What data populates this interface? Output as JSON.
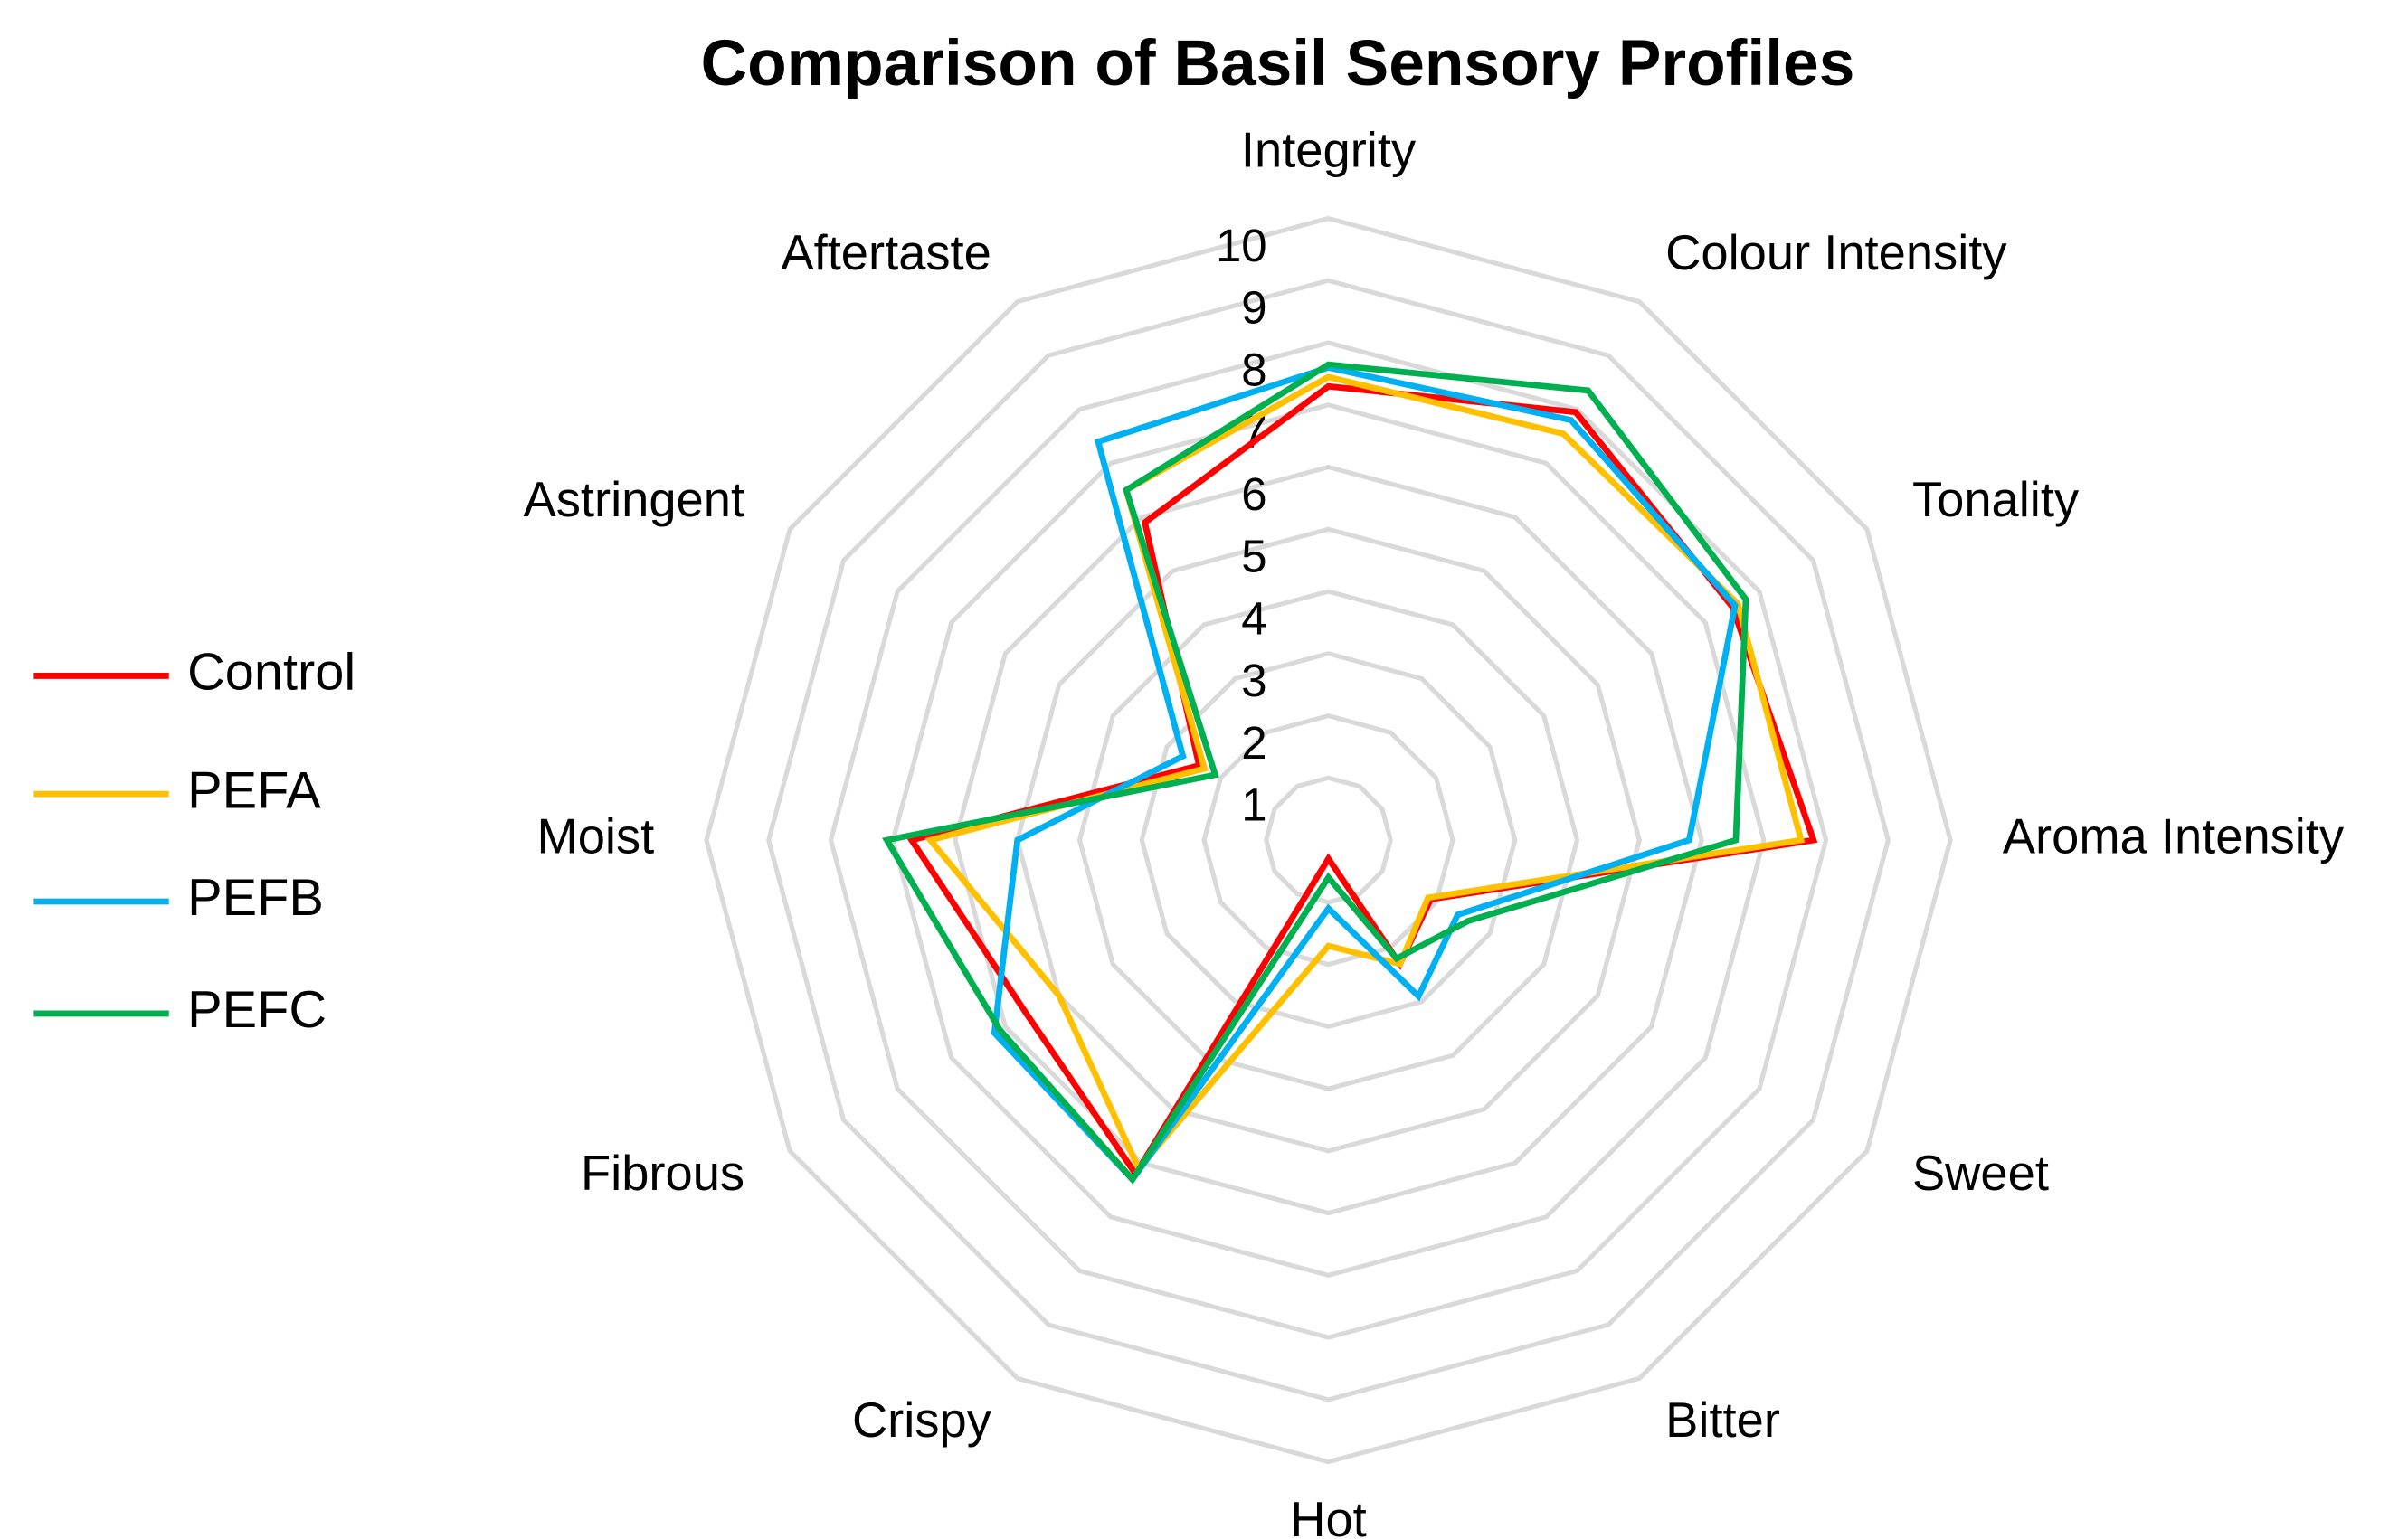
{
  "chart_data": {
    "type": "radar",
    "title": "Comparison of Basil Sensory Profiles",
    "categories": [
      "Integrity",
      "Colour Intensity",
      "Tonality",
      "Aroma Intensity",
      "Sweet",
      "Bitter",
      "Hot",
      "Crispy",
      "Fibrous",
      "Moist",
      "Astringent",
      "Aftertaste"
    ],
    "ylim": [
      0,
      10
    ],
    "yticks": [
      1,
      2,
      3,
      4,
      5,
      6,
      7,
      8,
      9,
      10
    ],
    "grid": true,
    "legend": "left",
    "series": [
      {
        "name": "Control",
        "color": "#ff0000",
        "values": [
          7.3,
          7.95,
          7.5,
          7.8,
          1.9,
          2.3,
          0.3,
          6.2,
          5.6,
          6.7,
          2.4,
          5.9
        ]
      },
      {
        "name": "PEFA",
        "color": "#ffc000",
        "values": [
          7.45,
          7.55,
          7.6,
          7.6,
          1.85,
          2.3,
          1.7,
          6.1,
          5.0,
          6.4,
          2.3,
          6.5
        ]
      },
      {
        "name": "PEFB",
        "color": "#00b0f0",
        "values": [
          7.6,
          7.8,
          7.55,
          5.8,
          2.4,
          2.9,
          1.1,
          6.3,
          6.2,
          5.0,
          2.7,
          7.4
        ]
      },
      {
        "name": "PEFC",
        "color": "#00b050",
        "values": [
          7.65,
          8.35,
          7.75,
          6.55,
          2.6,
          2.2,
          0.6,
          6.3,
          6.1,
          7.1,
          2.1,
          6.5
        ]
      }
    ]
  }
}
